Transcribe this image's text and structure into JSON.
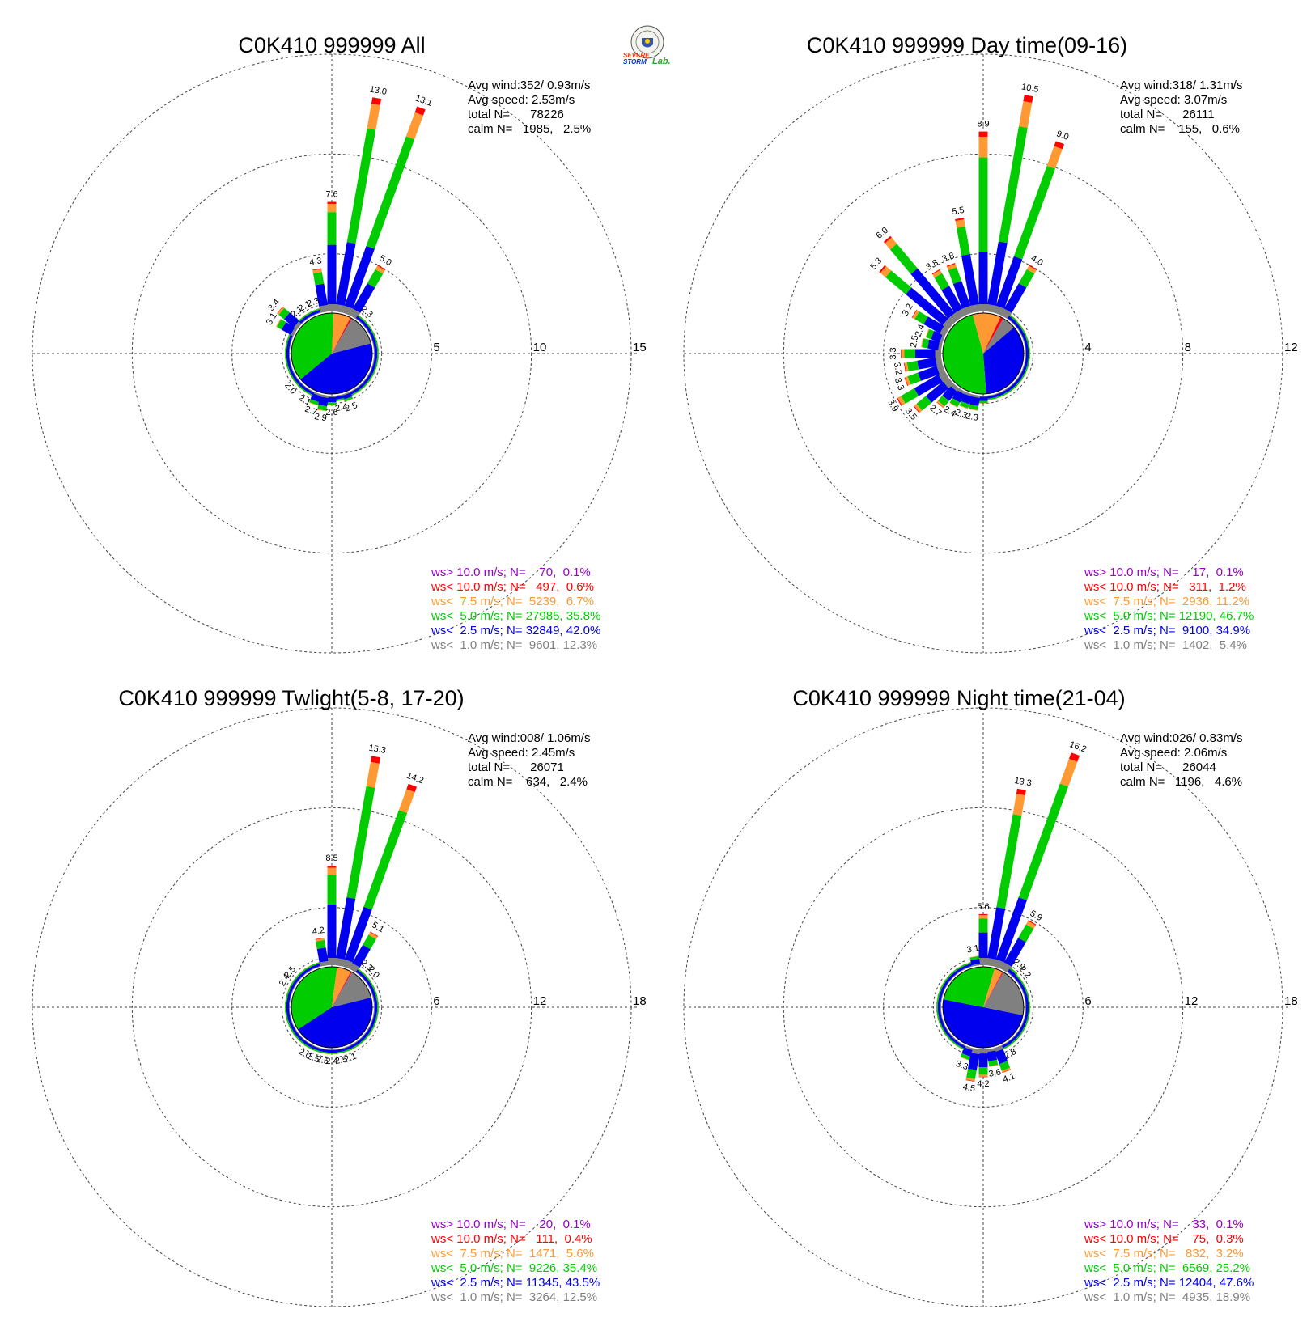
{
  "logo": {
    "line1": "SEVERE",
    "line2": "STORM",
    "line3": "Lab."
  },
  "colors": {
    "gray": "#808080",
    "blue": "#0000ee",
    "green": "#00cc00",
    "orange": "#ff9933",
    "red": "#ff0000",
    "purple": "#9900cc"
  },
  "chart_data": [
    {
      "type": "wind-rose",
      "title": "C0K410 999999 All",
      "rings": [
        5,
        10,
        15
      ],
      "ring_labels": [
        "5",
        "10",
        "15"
      ],
      "info": [
        "Avg wind:352/ 0.93m/s",
        "Avg speed: 2.53m/s",
        "total N=      78226",
        "calm N=   1985,   2.5%"
      ],
      "legend": [
        "ws> 10.0 m/s; N=    70,  0.1%",
        "ws< 10.0 m/s; N=   497,  0.6%",
        "ws<  7.5 m/s; N=  5239,  6.7%",
        "ws<  5.0 m/s; N= 27985, 35.8%",
        "ws<  2.5 m/s; N= 32849, 42.0%",
        "ws<  1.0 m/s; N=  9601, 12.3%"
      ],
      "legend_colors": [
        "#9900cc",
        "#ff0000",
        "#ff9933",
        "#00cc00",
        "#0000ee",
        "#808080"
      ],
      "pie_percent": [
        12.3,
        42.0,
        35.8,
        6.7,
        0.6,
        0.1
      ],
      "bars": [
        {
          "deg": 0,
          "value": 7.6,
          "label": "7.6"
        },
        {
          "deg": 10,
          "value": 13.0,
          "label": "13.0"
        },
        {
          "deg": 20,
          "value": 13.1,
          "label": "13.1"
        },
        {
          "deg": 30,
          "value": 5.0,
          "label": "5.0"
        },
        {
          "deg": 40,
          "value": 2.3,
          "label": "2.3"
        },
        {
          "deg": 50,
          "value": 1.6
        },
        {
          "deg": 60,
          "value": 1.2
        },
        {
          "deg": 70,
          "value": 1.0
        },
        {
          "deg": 80,
          "value": 0.9
        },
        {
          "deg": 90,
          "value": 0.9
        },
        {
          "deg": 100,
          "value": 1.0
        },
        {
          "deg": 110,
          "value": 1.1
        },
        {
          "deg": 120,
          "value": 1.3
        },
        {
          "deg": 130,
          "value": 1.5
        },
        {
          "deg": 140,
          "value": 1.7
        },
        {
          "deg": 150,
          "value": 2.0
        },
        {
          "deg": 160,
          "value": 2.5,
          "label": "2.5"
        },
        {
          "deg": 170,
          "value": 2.4,
          "label": "2.4"
        },
        {
          "deg": 180,
          "value": 2.6,
          "label": "2.6"
        },
        {
          "deg": 190,
          "value": 2.9,
          "label": "2.9"
        },
        {
          "deg": 200,
          "value": 2.7,
          "label": "2.7"
        },
        {
          "deg": 210,
          "value": 2.1,
          "label": "2.1"
        },
        {
          "deg": 220,
          "value": 2.0
        },
        {
          "deg": 230,
          "value": 2.0,
          "label": "2.0"
        },
        {
          "deg": 240,
          "value": 1.8
        },
        {
          "deg": 250,
          "value": 1.6
        },
        {
          "deg": 260,
          "value": 1.5
        },
        {
          "deg": 270,
          "value": 1.4
        },
        {
          "deg": 280,
          "value": 1.6
        },
        {
          "deg": 290,
          "value": 2.0
        },
        {
          "deg": 300,
          "value": 3.1,
          "label": "3.1"
        },
        {
          "deg": 310,
          "value": 3.4,
          "label": "3.4"
        },
        {
          "deg": 320,
          "value": 2.1,
          "label": "2.1"
        },
        {
          "deg": 330,
          "value": 2.1,
          "label": "2.1"
        },
        {
          "deg": 340,
          "value": 2.3,
          "label": "2.3"
        },
        {
          "deg": 350,
          "value": 4.3,
          "label": "4.3"
        }
      ]
    },
    {
      "type": "wind-rose",
      "title": "C0K410 999999 Day time(09-16)",
      "rings": [
        4,
        8,
        12
      ],
      "ring_labels": [
        "4",
        "8",
        "12"
      ],
      "info": [
        "Avg wind:318/ 1.31m/s",
        "Avg speed: 3.07m/s",
        "total N=      26111",
        "calm N=    155,   0.6%"
      ],
      "legend": [
        "ws> 10.0 m/s; N=    17,  0.1%",
        "ws< 10.0 m/s; N=   311,  1.2%",
        "ws<  7.5 m/s; N=  2936, 11.2%",
        "ws<  5.0 m/s; N= 12190, 46.7%",
        "ws<  2.5 m/s; N=  9100, 34.9%",
        "ws<  1.0 m/s; N=  1402,  5.4%"
      ],
      "legend_colors": [
        "#9900cc",
        "#ff0000",
        "#ff9933",
        "#00cc00",
        "#0000ee",
        "#808080"
      ],
      "pie_percent": [
        5.4,
        34.9,
        46.7,
        11.2,
        1.2,
        0.1
      ],
      "bars": [
        {
          "deg": 0,
          "value": 8.9,
          "label": "8.9"
        },
        {
          "deg": 10,
          "value": 10.5,
          "label": "10.5"
        },
        {
          "deg": 20,
          "value": 9.0,
          "label": "9.0"
        },
        {
          "deg": 30,
          "value": 4.0,
          "label": "4.0"
        },
        {
          "deg": 40,
          "value": 1.9
        },
        {
          "deg": 50,
          "value": 1.4
        },
        {
          "deg": 60,
          "value": 1.1
        },
        {
          "deg": 70,
          "value": 0.9
        },
        {
          "deg": 80,
          "value": 0.8
        },
        {
          "deg": 90,
          "value": 0.8
        },
        {
          "deg": 100,
          "value": 0.9
        },
        {
          "deg": 110,
          "value": 0.9
        },
        {
          "deg": 120,
          "value": 1.0
        },
        {
          "deg": 130,
          "value": 1.1
        },
        {
          "deg": 140,
          "value": 1.2
        },
        {
          "deg": 150,
          "value": 1.4
        },
        {
          "deg": 160,
          "value": 1.6
        },
        {
          "deg": 170,
          "value": 1.8
        },
        {
          "deg": 180,
          "value": 2.0
        },
        {
          "deg": 190,
          "value": 2.3,
          "label": "2.3"
        },
        {
          "deg": 200,
          "value": 2.3,
          "label": "2.3"
        },
        {
          "deg": 210,
          "value": 2.4,
          "label": "2.4"
        },
        {
          "deg": 220,
          "value": 2.7,
          "label": "2.7"
        },
        {
          "deg": 230,
          "value": 3.5,
          "label": "3.5"
        },
        {
          "deg": 240,
          "value": 3.9,
          "label": "3.9"
        },
        {
          "deg": 250,
          "value": 3.3,
          "label": "3.3"
        },
        {
          "deg": 260,
          "value": 3.2,
          "label": "3.2"
        },
        {
          "deg": 270,
          "value": 3.3,
          "label": "3.3"
        },
        {
          "deg": 280,
          "value": 2.5,
          "label": "2.5"
        },
        {
          "deg": 290,
          "value": 2.4,
          "label": "2.4"
        },
        {
          "deg": 300,
          "value": 3.2,
          "label": "3.2"
        },
        {
          "deg": 310,
          "value": 5.3,
          "label": "5.3"
        },
        {
          "deg": 320,
          "value": 6.0,
          "label": "6.0"
        },
        {
          "deg": 330,
          "value": 3.8,
          "label": "3.8"
        },
        {
          "deg": 340,
          "value": 3.8,
          "label": "3.8"
        },
        {
          "deg": 350,
          "value": 5.5,
          "label": "5.5"
        }
      ]
    },
    {
      "type": "wind-rose",
      "title": "C0K410 999999 Twlight(5-8, 17-20)",
      "rings": [
        6,
        12,
        18
      ],
      "ring_labels": [
        "6",
        "12",
        "18"
      ],
      "info": [
        "Avg wind:008/ 1.06m/s",
        "Avg speed: 2.45m/s",
        "total N=      26071",
        "calm N=    634,   2.4%"
      ],
      "legend": [
        "ws> 10.0 m/s; N=    20,  0.1%",
        "ws< 10.0 m/s; N=   111,  0.4%",
        "ws<  7.5 m/s; N=  1471,  5.6%",
        "ws<  5.0 m/s; N=  9226, 35.4%",
        "ws<  2.5 m/s; N= 11345, 43.5%",
        "ws<  1.0 m/s; N=  3264, 12.5%"
      ],
      "legend_colors": [
        "#9900cc",
        "#ff0000",
        "#ff9933",
        "#00cc00",
        "#0000ee",
        "#808080"
      ],
      "pie_percent": [
        12.5,
        43.5,
        35.4,
        5.6,
        0.4,
        0.1
      ],
      "bars": [
        {
          "deg": 0,
          "value": 8.5,
          "label": "8.5"
        },
        {
          "deg": 10,
          "value": 15.3,
          "label": "15.3"
        },
        {
          "deg": 20,
          "value": 14.2,
          "label": "14.2"
        },
        {
          "deg": 30,
          "value": 5.1,
          "label": "5.1"
        },
        {
          "deg": 40,
          "value": 2.3,
          "label": "2.3"
        },
        {
          "deg": 50,
          "value": 2.0,
          "label": "2.0"
        },
        {
          "deg": 60,
          "value": 1.5
        },
        {
          "deg": 70,
          "value": 1.3
        },
        {
          "deg": 80,
          "value": 1.2
        },
        {
          "deg": 90,
          "value": 1.1
        },
        {
          "deg": 100,
          "value": 1.2
        },
        {
          "deg": 110,
          "value": 1.3
        },
        {
          "deg": 120,
          "value": 1.4
        },
        {
          "deg": 130,
          "value": 1.5
        },
        {
          "deg": 140,
          "value": 1.6
        },
        {
          "deg": 150,
          "value": 1.8
        },
        {
          "deg": 160,
          "value": 2.1,
          "label": "2.1"
        },
        {
          "deg": 170,
          "value": 2.5,
          "label": "2.5"
        },
        {
          "deg": 180,
          "value": 2.4,
          "label": "2.4"
        },
        {
          "deg": 190,
          "value": 2.5,
          "label": "2.5"
        },
        {
          "deg": 200,
          "value": 2.5,
          "label": "2.5"
        },
        {
          "deg": 210,
          "value": 2.0,
          "label": "2.0"
        },
        {
          "deg": 220,
          "value": 2.0
        },
        {
          "deg": 230,
          "value": 1.9
        },
        {
          "deg": 240,
          "value": 1.8
        },
        {
          "deg": 250,
          "value": 1.6
        },
        {
          "deg": 260,
          "value": 1.5
        },
        {
          "deg": 270,
          "value": 1.4
        },
        {
          "deg": 280,
          "value": 1.5
        },
        {
          "deg": 290,
          "value": 1.8
        },
        {
          "deg": 300,
          "value": 2.4,
          "label": "2.4"
        },
        {
          "deg": 310,
          "value": 2.5,
          "label": "2.5"
        },
        {
          "deg": 320,
          "value": 1.7
        },
        {
          "deg": 330,
          "value": 1.8
        },
        {
          "deg": 340,
          "value": 2.0
        },
        {
          "deg": 350,
          "value": 4.2,
          "label": "4.2"
        }
      ]
    },
    {
      "type": "wind-rose",
      "title": "C0K410 999999 Night time(21-04)",
      "rings": [
        6,
        12,
        18
      ],
      "ring_labels": [
        "6",
        "12",
        "18"
      ],
      "info": [
        "Avg wind:026/ 0.83m/s",
        "Avg speed: 2.06m/s",
        "total N=      26044",
        "calm N=   1196,   4.6%"
      ],
      "legend": [
        "ws> 10.0 m/s; N=    33,  0.1%",
        "ws< 10.0 m/s; N=    75,  0.3%",
        "ws<  7.5 m/s; N=   832,  3.2%",
        "ws<  5.0 m/s; N=  6569, 25.2%",
        "ws<  2.5 m/s; N= 12404, 47.6%",
        "ws<  1.0 m/s; N=  4935, 18.9%"
      ],
      "legend_colors": [
        "#9900cc",
        "#ff0000",
        "#ff9933",
        "#00cc00",
        "#0000ee",
        "#808080"
      ],
      "pie_percent": [
        18.9,
        47.6,
        25.2,
        3.2,
        0.3,
        0.1
      ],
      "bars": [
        {
          "deg": 0,
          "value": 5.6,
          "label": "5.6"
        },
        {
          "deg": 10,
          "value": 13.3,
          "label": "13.3"
        },
        {
          "deg": 20,
          "value": 16.2,
          "label": "16.2"
        },
        {
          "deg": 30,
          "value": 5.9,
          "label": "5.9"
        },
        {
          "deg": 40,
          "value": 2.9,
          "label": "2.9"
        },
        {
          "deg": 50,
          "value": 2.2,
          "label": "2.2"
        },
        {
          "deg": 60,
          "value": 1.6
        },
        {
          "deg": 70,
          "value": 1.3
        },
        {
          "deg": 80,
          "value": 1.2
        },
        {
          "deg": 90,
          "value": 1.2
        },
        {
          "deg": 100,
          "value": 1.3
        },
        {
          "deg": 110,
          "value": 1.4
        },
        {
          "deg": 120,
          "value": 1.6
        },
        {
          "deg": 130,
          "value": 1.8
        },
        {
          "deg": 140,
          "value": 2.2
        },
        {
          "deg": 150,
          "value": 2.8,
          "label": "2.8"
        },
        {
          "deg": 160,
          "value": 4.1,
          "label": "4.1"
        },
        {
          "deg": 170,
          "value": 3.6,
          "label": "3.6"
        },
        {
          "deg": 180,
          "value": 4.2,
          "label": "4.2"
        },
        {
          "deg": 190,
          "value": 4.5,
          "label": "4.5"
        },
        {
          "deg": 200,
          "value": 3.3,
          "label": "3.3"
        },
        {
          "deg": 210,
          "value": 2.4
        },
        {
          "deg": 220,
          "value": 2.0
        },
        {
          "deg": 230,
          "value": 1.9
        },
        {
          "deg": 240,
          "value": 1.8
        },
        {
          "deg": 250,
          "value": 1.7
        },
        {
          "deg": 260,
          "value": 1.6
        },
        {
          "deg": 270,
          "value": 1.6
        },
        {
          "deg": 280,
          "value": 1.7
        },
        {
          "deg": 290,
          "value": 1.9
        },
        {
          "deg": 300,
          "value": 2.1
        },
        {
          "deg": 310,
          "value": 2.2
        },
        {
          "deg": 320,
          "value": 2.1
        },
        {
          "deg": 330,
          "value": 2.0
        },
        {
          "deg": 340,
          "value": 2.2
        },
        {
          "deg": 350,
          "value": 3.1,
          "label": "3.1"
        }
      ]
    }
  ]
}
